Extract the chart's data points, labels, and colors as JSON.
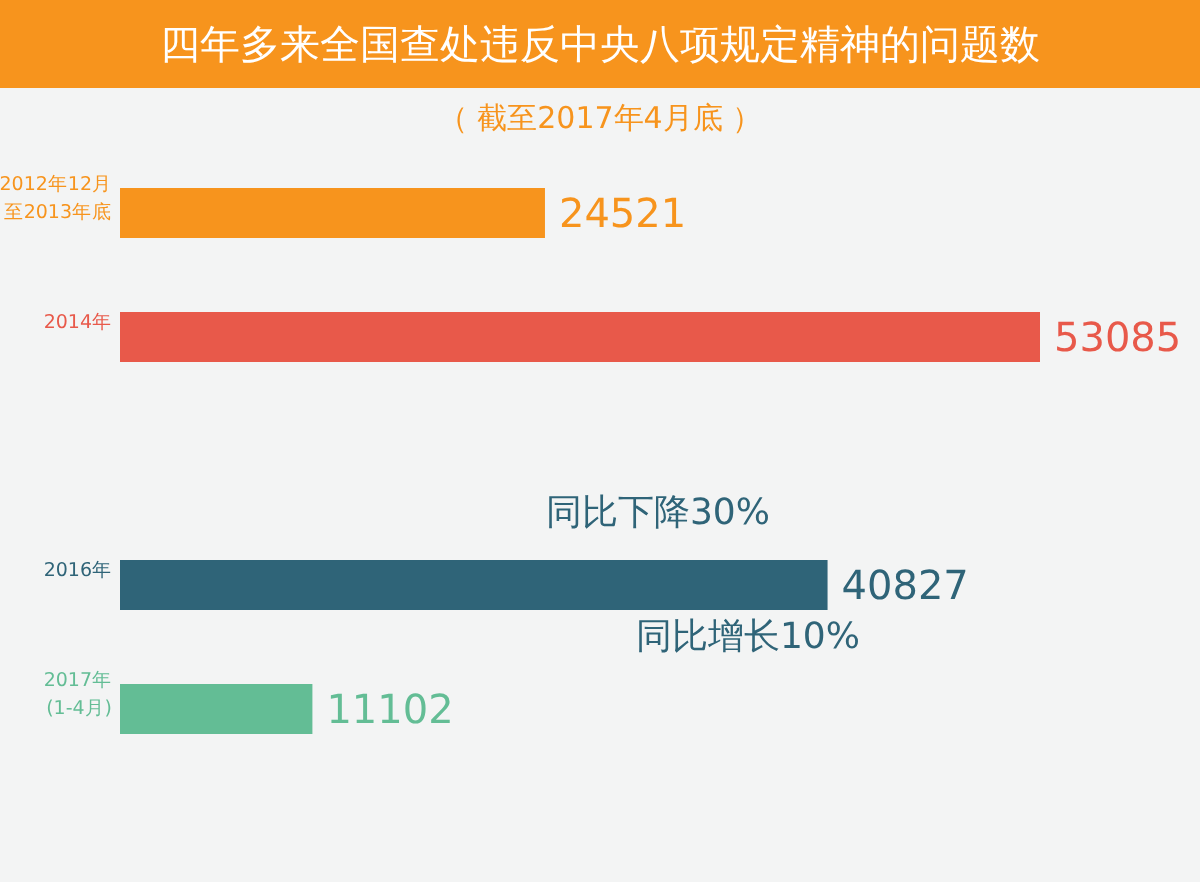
{
  "chart_data": {
    "type": "bar",
    "orientation": "horizontal",
    "title": "四年多来全国查处违反中央八项规定精神的问题数",
    "subtitle": "（ 截至2017年4月底 ）",
    "categories": [
      "2012年12月至2013年底",
      "2014年",
      null,
      "2016年",
      "2017年(1-4月)"
    ],
    "values": [
      24521,
      53085,
      null,
      40827,
      11102
    ],
    "colors": [
      "#f7941d",
      "#e8594a",
      null,
      "#2f6478",
      "#63bd95"
    ],
    "data_labels": true,
    "annotations": [
      "同比下降30%",
      "同比增长10%"
    ]
  }
}
